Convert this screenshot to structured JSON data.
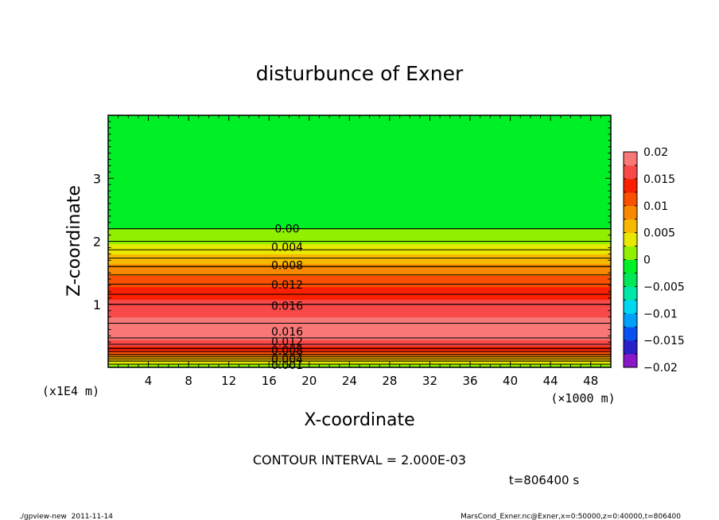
{
  "chart_data": {
    "type": "heatmap",
    "title": "disturbunce of Exner",
    "xlabel": "X-coordinate",
    "ylabel": "Z-coordinate",
    "x_unit_label": "(×1000 m)",
    "y_unit_label": "(x1E4 m)",
    "xlim": [
      0,
      50
    ],
    "ylim": [
      0,
      4
    ],
    "x_ticks": [
      "4",
      "8",
      "12",
      "16",
      "20",
      "24",
      "28",
      "32",
      "36",
      "40",
      "44",
      "48"
    ],
    "x_tick_values": [
      4,
      8,
      12,
      16,
      20,
      24,
      28,
      32,
      36,
      40,
      44,
      48
    ],
    "y_ticks": [
      "1",
      "2",
      "3"
    ],
    "y_tick_values": [
      1,
      2,
      3
    ],
    "colorbar": {
      "range": [
        -0.02,
        0.02
      ],
      "labels": [
        "0.02",
        "0.015",
        "0.01",
        "0.005",
        "0",
        "−0.005",
        "−0.01",
        "−0.015",
        "−0.02"
      ],
      "label_values": [
        0.02,
        0.015,
        0.01,
        0.005,
        0,
        -0.005,
        -0.01,
        -0.015,
        -0.02
      ],
      "colors": [
        "#8a18c8",
        "#2a20c8",
        "#0a50f0",
        "#00a0f8",
        "#00d8f0",
        "#00e8a8",
        "#00e858",
        "#00f028",
        "#90f000",
        "#e8e800",
        "#f8b800",
        "#f88800",
        "#f85000",
        "#f82000",
        "#f84848",
        "#f87878"
      ]
    },
    "profile": {
      "z": [
        0,
        0.05,
        0.1,
        0.15,
        0.2,
        0.3,
        0.4,
        0.5,
        0.6,
        0.8,
        1.0,
        1.2,
        1.4,
        1.6,
        1.8,
        2.0,
        2.2,
        2.4,
        2.6,
        3.0,
        4.0
      ],
      "value": [
        0.0,
        0.002,
        0.004,
        0.007,
        0.01,
        0.014,
        0.017,
        0.0185,
        0.0185,
        0.0175,
        0.016,
        0.0135,
        0.011,
        0.008,
        0.005,
        0.002,
        0.0,
        -0.001,
        -0.0015,
        -0.0017,
        -0.0018
      ]
    },
    "contour_labels": [
      {
        "text": "0.00",
        "z": 2.2
      },
      {
        "text": "0.004",
        "z": 1.91
      },
      {
        "text": "0.008",
        "z": 1.62
      },
      {
        "text": "0.012",
        "z": 1.31
      },
      {
        "text": "0.016",
        "z": 0.98
      },
      {
        "text": "0.016",
        "z": 0.57
      },
      {
        "text": "0.012",
        "z": 0.41
      },
      {
        "text": "0.008",
        "z": 0.27
      },
      {
        "text": "0.004",
        "z": 0.13
      },
      {
        "text": "0.001",
        "z": 0.04
      }
    ],
    "contour_interval_text": "CONTOUR INTERVAL = 2.000E-03",
    "time_text": "t=806400 s"
  },
  "footer": {
    "left": "./gpview-new  2011-11-14",
    "right": "MarsCond_Exner.nc@Exner,x=0:50000,z=0:40000,t=806400"
  },
  "colors": {
    "background": "#ffffff",
    "axis": "#000000"
  }
}
